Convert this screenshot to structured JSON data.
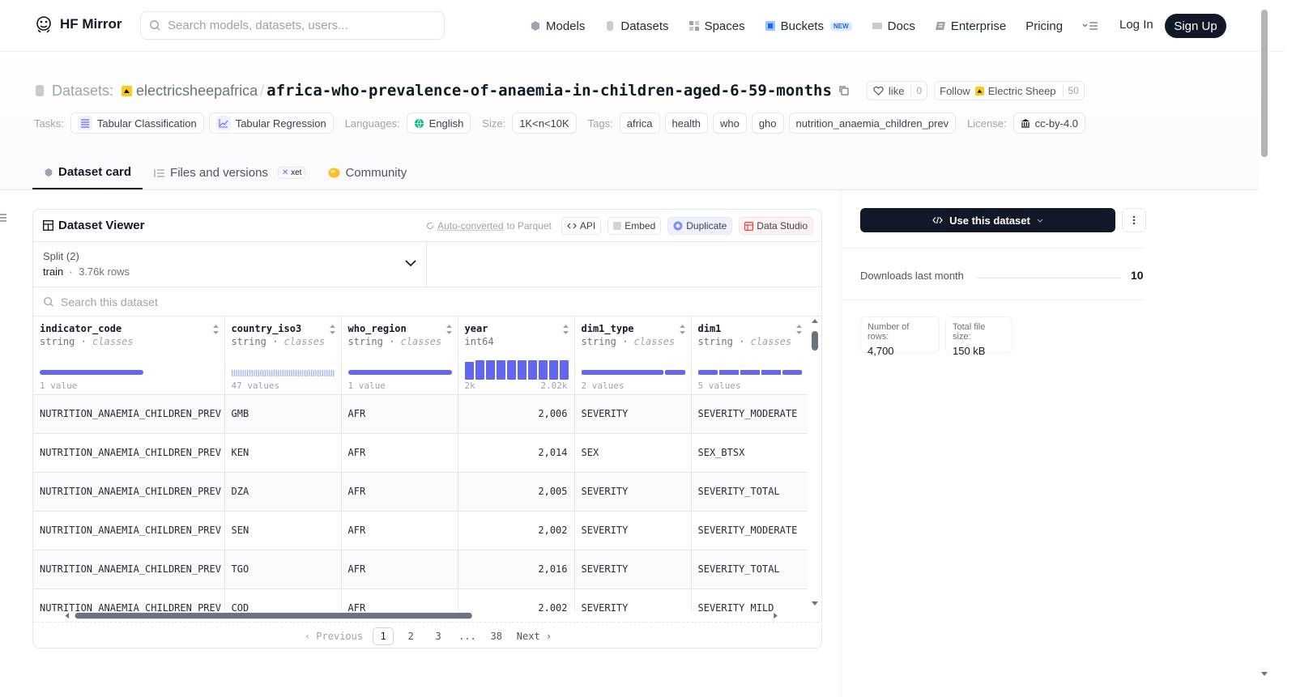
{
  "nav": {
    "brand": "HF Mirror",
    "search_placeholder": "Search models, datasets, users...",
    "items": [
      {
        "label": "Models",
        "icon": "cube-icon"
      },
      {
        "label": "Datasets",
        "icon": "database-icon"
      },
      {
        "label": "Spaces",
        "icon": "grid-icon"
      },
      {
        "label": "Buckets",
        "icon": "bucket-icon",
        "badge": "NEW"
      },
      {
        "label": "Docs",
        "icon": "book-icon"
      },
      {
        "label": "Enterprise",
        "icon": "enterprise-icon"
      },
      {
        "label": "Pricing"
      }
    ],
    "login": "Log In",
    "signup": "Sign Up"
  },
  "header": {
    "section": "Datasets:",
    "owner": "electricsheepafrica",
    "separator": "/",
    "name": "africa-who-prevalence-of-anaemia-in-children-aged-6-59-months",
    "like_label": "like",
    "like_count": "0",
    "follow_label": "Follow",
    "follow_org": "Electric Sheep",
    "follow_count": "50"
  },
  "tags": {
    "tasks_label": "Tasks:",
    "tasks": [
      "Tabular Classification",
      "Tabular Regression"
    ],
    "languages_label": "Languages:",
    "languages": [
      "English"
    ],
    "size_label": "Size:",
    "size": "1K<n<10K",
    "tags_label": "Tags:",
    "tags": [
      "africa",
      "health",
      "who",
      "gho",
      "nutrition_anaemia_children_prev"
    ],
    "license_label": "License:",
    "license": "cc-by-4.0"
  },
  "tabs": [
    {
      "label": "Dataset card",
      "active": true
    },
    {
      "label": "Files and versions",
      "badge": "xet"
    },
    {
      "label": "Community"
    }
  ],
  "viewer": {
    "title": "Dataset Viewer",
    "auto_converted": "Auto-converted",
    "auto_converted_suffix": " to Parquet",
    "buttons": [
      "API",
      "Embed",
      "Duplicate",
      "Data Studio"
    ],
    "split_label": "Split (2)",
    "split_name": "train",
    "split_rows": "3.76k rows",
    "search_placeholder": "Search this dataset",
    "columns": [
      {
        "name": "indicator_code",
        "type": "string",
        "kind": "classes",
        "summary": "1 value"
      },
      {
        "name": "country_iso3",
        "type": "string",
        "kind": "classes",
        "summary": "47 values"
      },
      {
        "name": "who_region",
        "type": "string",
        "kind": "classes",
        "summary": "1 value"
      },
      {
        "name": "year",
        "type": "int64",
        "kind": "",
        "summary": "2k",
        "summary_max": "2.02k"
      },
      {
        "name": "dim1_type",
        "type": "string",
        "kind": "classes",
        "summary": "2 values"
      },
      {
        "name": "dim1",
        "type": "string",
        "kind": "classes",
        "summary": "5 values"
      }
    ],
    "rows": [
      [
        "NUTRITION_ANAEMIA_CHILDREN_PREV",
        "GMB",
        "AFR",
        "2,006",
        "SEVERITY",
        "SEVERITY_MODERATE"
      ],
      [
        "NUTRITION_ANAEMIA_CHILDREN_PREV",
        "KEN",
        "AFR",
        "2,014",
        "SEX",
        "SEX_BTSX"
      ],
      [
        "NUTRITION_ANAEMIA_CHILDREN_PREV",
        "DZA",
        "AFR",
        "2,005",
        "SEVERITY",
        "SEVERITY_TOTAL"
      ],
      [
        "NUTRITION_ANAEMIA_CHILDREN_PREV",
        "SEN",
        "AFR",
        "2,002",
        "SEVERITY",
        "SEVERITY_MODERATE"
      ],
      [
        "NUTRITION_ANAEMIA_CHILDREN_PREV",
        "TGO",
        "AFR",
        "2,016",
        "SEVERITY",
        "SEVERITY_TOTAL"
      ],
      [
        "NUTRITION_ANAEMIA_CHILDREN_PREV",
        "COD",
        "AFR",
        "2,002",
        "SEVERITY",
        "SEVERITY_MILD"
      ]
    ],
    "pager": {
      "previous": "Previous",
      "pages": [
        "1",
        "2",
        "3",
        "...",
        "38"
      ],
      "next": "Next",
      "current": "1"
    }
  },
  "sidebar": {
    "use_button": "Use this dataset",
    "downloads_label": "Downloads last month",
    "downloads_value": "10",
    "rows_label": "Number of rows:",
    "rows_value": "4,700",
    "size_label": "Total file size:",
    "size_value": "150 kB"
  },
  "colors": {
    "accent": "#6366f1",
    "dark": "#111827",
    "studio": "#ef4444"
  }
}
